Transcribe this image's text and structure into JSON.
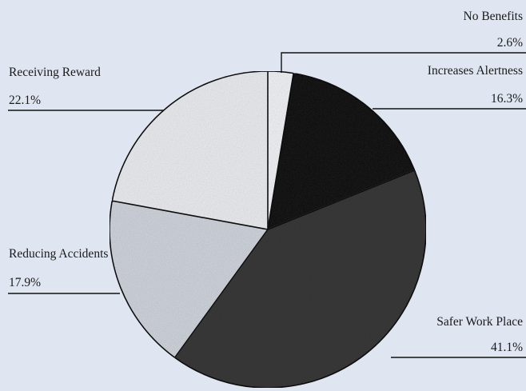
{
  "chart_data": {
    "type": "pie",
    "slices": [
      {
        "label": "No Benefits",
        "value": 2.6,
        "value_label": "2.6%",
        "fill": "#f4f5f8"
      },
      {
        "label": "Increases Alertness",
        "value": 16.3,
        "value_label": "16.3%",
        "fill": "#141414"
      },
      {
        "label": "Safer Work Place",
        "value": 41.1,
        "value_label": "41.1%",
        "fill": "#3a3a3a"
      },
      {
        "label": "Reducing Accidents",
        "value": 17.9,
        "value_label": "17.9%",
        "fill": "#d2d6de"
      },
      {
        "label": "Receiving Reward",
        "value": 22.1,
        "value_label": "22.1%",
        "fill": "#edeff3"
      }
    ],
    "start": "12 o'clock",
    "direction": "clockwise",
    "legend": "none (callout labels)"
  },
  "colors": {
    "background": "#dfe5f1",
    "outline": "#111111"
  }
}
